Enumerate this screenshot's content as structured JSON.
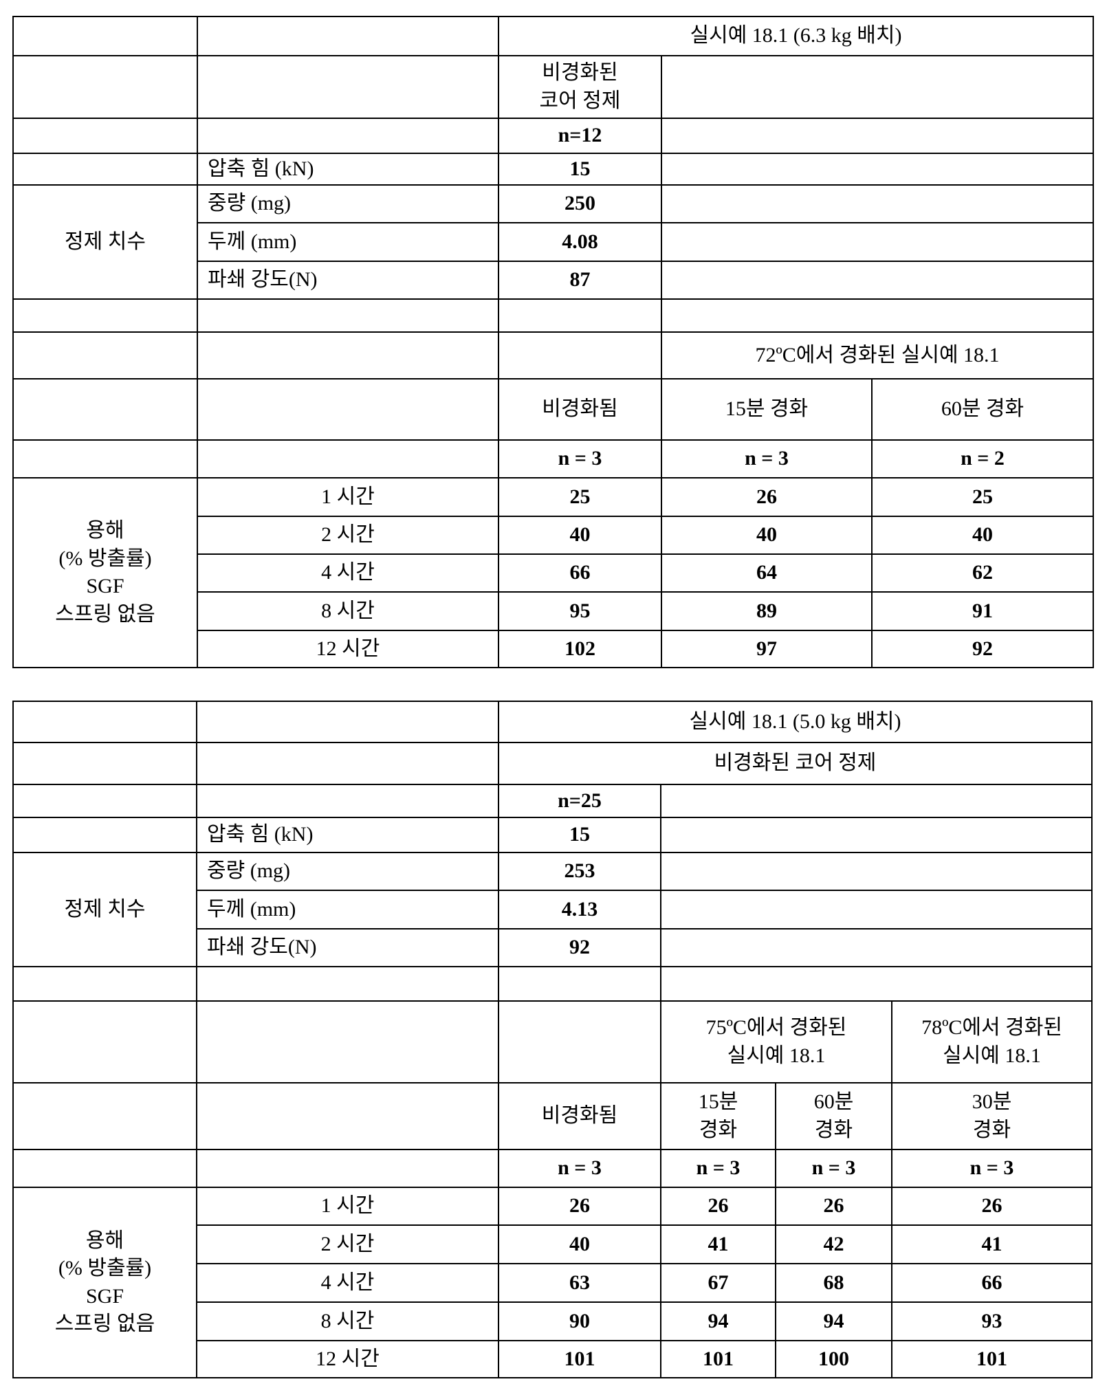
{
  "table1": {
    "title": "실시예 18.1 (6.3 kg 배치)",
    "core_header": "비경화된\n코어 정제",
    "n_core": "n=12",
    "compression_label": "압축 힘 (kN)",
    "compression": "15",
    "dims_label": "정제 치수",
    "weight_label": "중량 (mg)",
    "weight": "250",
    "thickness_label": "두께 (mm)",
    "thickness": "4.08",
    "breaking_label": "파쇄 강도(N)",
    "breaking": "87",
    "cured_title": "72ºC에서 경화된 실시예 18.1",
    "columns": [
      "비경화됨",
      "15분 경화",
      "60분 경화"
    ],
    "n_values": [
      "n = 3",
      "n = 3",
      "n = 2"
    ],
    "dissolution_label": "용해\n(% 방출률)\nSGF\n스프링 없음",
    "rows": [
      {
        "time": "1 시간",
        "values": [
          "25",
          "26",
          "25"
        ]
      },
      {
        "time": "2 시간",
        "values": [
          "40",
          "40",
          "40"
        ]
      },
      {
        "time": "4 시간",
        "values": [
          "66",
          "64",
          "62"
        ]
      },
      {
        "time": "8 시간",
        "values": [
          "95",
          "89",
          "91"
        ]
      },
      {
        "time": "12 시간",
        "values": [
          "102",
          "97",
          "92"
        ]
      }
    ]
  },
  "table2": {
    "title": "실시예 18.1 (5.0 kg 배치)",
    "core_header": "비경화된 코어 정제",
    "n_core": "n=25",
    "compression_label": "압축 힘 (kN)",
    "compression": "15",
    "dims_label": "정제 치수",
    "weight_label": "중량 (mg)",
    "weight": "253",
    "thickness_label": "두께 (mm)",
    "thickness": "4.13",
    "breaking_label": "파쇄 강도(N)",
    "breaking": "92",
    "cured_75": "75ºC에서 경화된\n실시예 18.1",
    "cured_78": "78ºC에서 경화된\n실시예 18.1",
    "columns": [
      "비경화됨",
      "15분\n경화",
      "60분\n경화",
      "30분\n경화"
    ],
    "n_values": [
      "n = 3",
      "n = 3",
      "n = 3",
      "n = 3"
    ],
    "dissolution_label": "용해\n(% 방출률)\nSGF\n스프링 없음",
    "rows": [
      {
        "time": "1 시간",
        "values": [
          "26",
          "26",
          "26",
          "26"
        ]
      },
      {
        "time": "2 시간",
        "values": [
          "40",
          "41",
          "42",
          "41"
        ]
      },
      {
        "time": "4 시간",
        "values": [
          "63",
          "67",
          "68",
          "66"
        ]
      },
      {
        "time": "8 시간",
        "values": [
          "90",
          "94",
          "94",
          "93"
        ]
      },
      {
        "time": "12 시간",
        "values": [
          "101",
          "101",
          "100",
          "101"
        ]
      }
    ]
  }
}
